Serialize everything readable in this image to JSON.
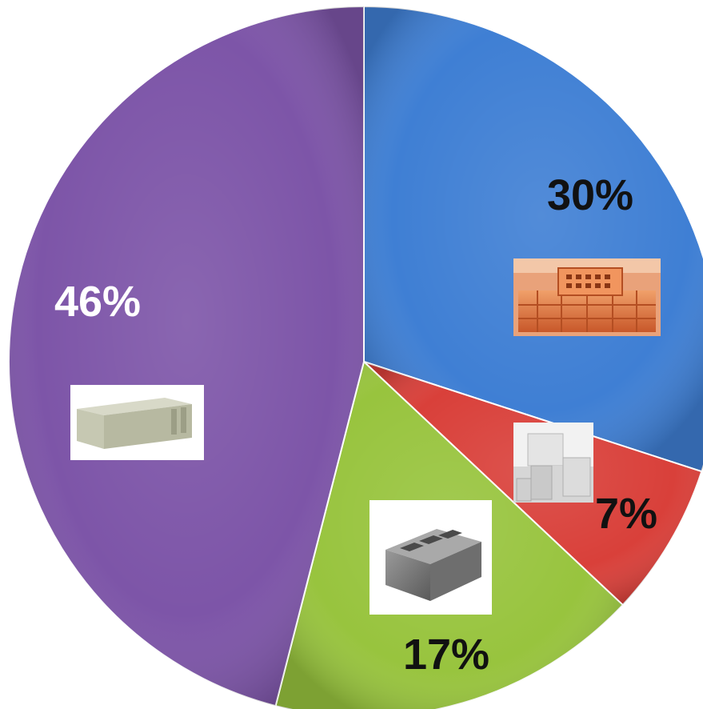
{
  "chart_data": {
    "type": "pie",
    "title": "",
    "start_angle_deg": 0,
    "direction": "clockwise",
    "slices": [
      {
        "value": 30,
        "label": "30%",
        "color": "#3f7fd4",
        "label_color": "#111111",
        "image_icon": "brick-stack-icon"
      },
      {
        "value": 7,
        "label": "7%",
        "color": "#d9403a",
        "label_color": "#111111",
        "image_icon": "gas-block-icon"
      },
      {
        "value": 17,
        "label": "17%",
        "color": "#98c43e",
        "label_color": "#111111",
        "image_icon": "cinder-block-icon"
      },
      {
        "value": 46,
        "label": "46%",
        "color": "#7d55a8",
        "label_color": "#ffffff",
        "image_icon": "aerated-block-icon"
      }
    ]
  }
}
